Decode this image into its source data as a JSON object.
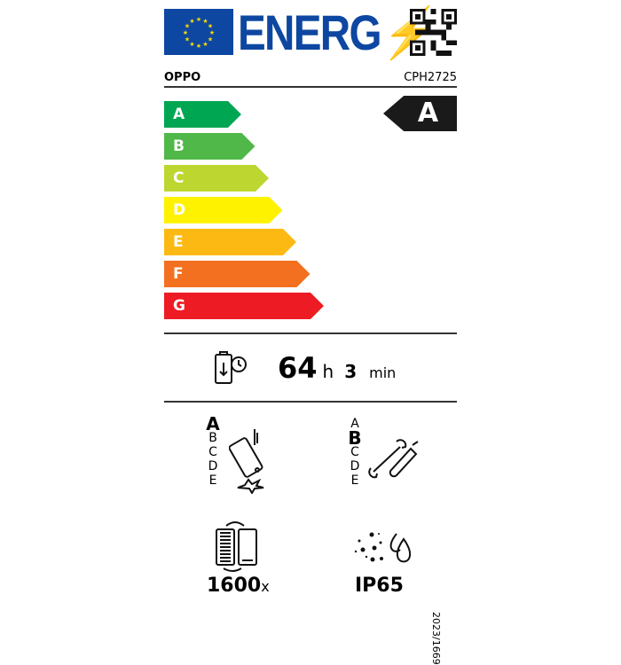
{
  "header": {
    "logo_text": "ENERG",
    "brand": "OPPO",
    "model": "CPH2725"
  },
  "scale": [
    {
      "label": "A",
      "color": "#00a651"
    },
    {
      "label": "B",
      "color": "#50b848"
    },
    {
      "label": "C",
      "color": "#bed630"
    },
    {
      "label": "D",
      "color": "#fff200"
    },
    {
      "label": "E",
      "color": "#fdb913"
    },
    {
      "label": "F",
      "color": "#f37021"
    },
    {
      "label": "G",
      "color": "#ed1c24"
    }
  ],
  "rating": "A",
  "battery": {
    "hours": "64",
    "h_unit": "h",
    "minutes": "3",
    "min_unit": "min"
  },
  "drop": {
    "classes": [
      "A",
      "B",
      "C",
      "D",
      "E"
    ],
    "selected": "A"
  },
  "repair": {
    "classes": [
      "A",
      "B",
      "C",
      "D",
      "E"
    ],
    "selected": "B"
  },
  "cycles": {
    "value": "1600",
    "unit": "x"
  },
  "ip": "IP65",
  "regulation": "2023/1669"
}
